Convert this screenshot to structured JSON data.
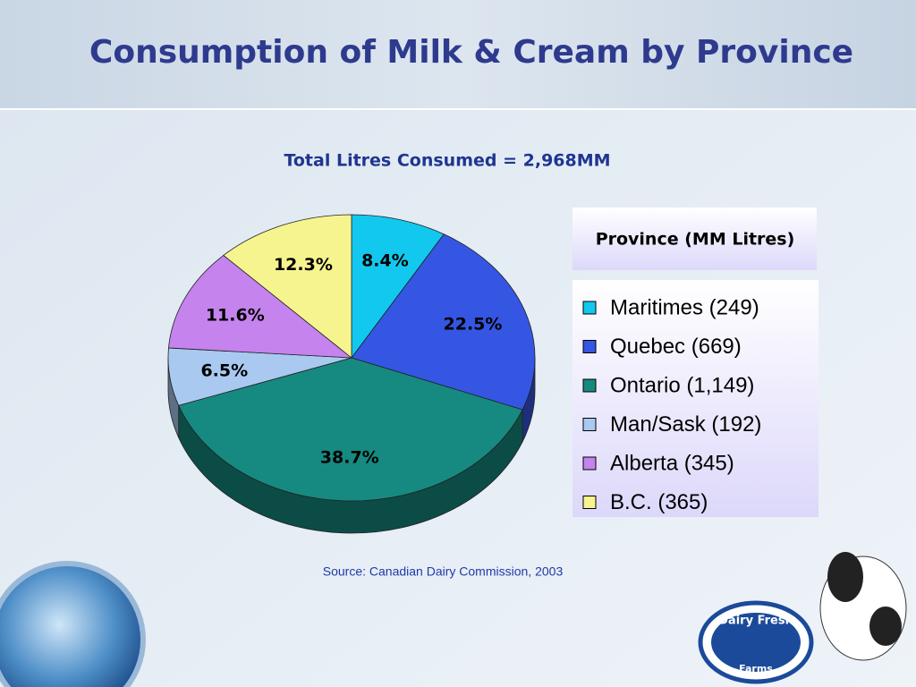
{
  "chart_data": {
    "type": "pie",
    "title": "Consumption of Milk & Cream by Province",
    "subtitle": "Total Litres Consumed = 2,968MM",
    "legend_title": "Province (MM Litres)",
    "source": "Source: Canadian Dairy Commission, 2003",
    "logo_text": [
      "Dairy Fresh",
      "Farms"
    ],
    "categories": [
      "Maritimes (249)",
      "Quebec (669)",
      "Ontario (1,149)",
      "Man/Sask (192)",
      "Alberta (345)",
      "B.C. (365)"
    ],
    "values": [
      8.4,
      22.5,
      38.7,
      6.5,
      11.6,
      12.3
    ],
    "value_labels": [
      "8.4%",
      "22.5%",
      "38.7%",
      "6.5%",
      "11.6%",
      "12.3%"
    ],
    "colors": [
      "#12c8ee",
      "#3456e2",
      "#168a80",
      "#a9c9f0",
      "#c583ee",
      "#f6f48e"
    ],
    "legend": "right"
  }
}
